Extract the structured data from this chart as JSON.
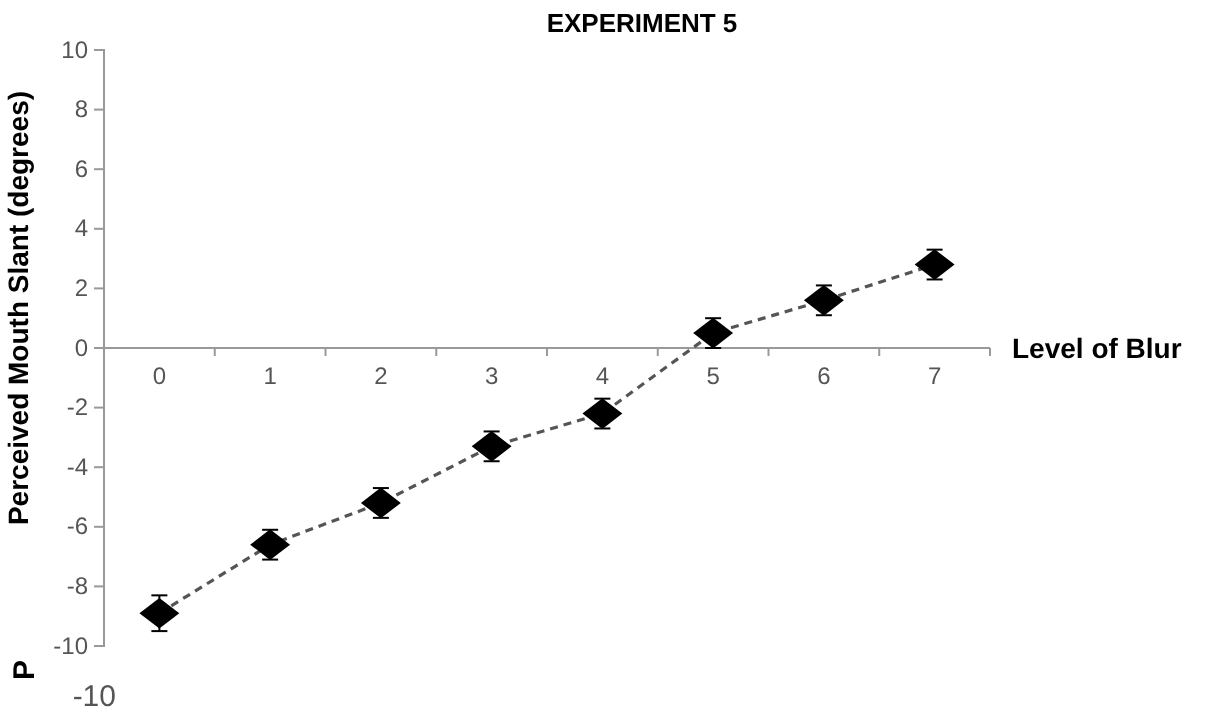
{
  "chart_data": {
    "type": "line",
    "title": "EXPERIMENT 5",
    "xlabel": "Level of Blur",
    "ylabel": "Perceived Mouth Slant (degrees)",
    "categories": [
      "0",
      "1",
      "2",
      "3",
      "4",
      "5",
      "6",
      "7"
    ],
    "series": [
      {
        "color": "#000000",
        "values": [
          -8.9,
          -6.6,
          -5.2,
          -3.3,
          -2.2,
          0.5,
          1.6,
          2.8
        ],
        "errors": [
          0.6,
          0.5,
          0.5,
          0.5,
          0.5,
          0.5,
          0.5,
          0.5
        ]
      }
    ],
    "ylim": [
      -10,
      10
    ],
    "yticks": [
      -10,
      -8,
      -6,
      -4,
      -2,
      0,
      2,
      4,
      6,
      8,
      10
    ],
    "marker": "diamond",
    "line_style": "dashed",
    "grid": false,
    "annotations": [
      "P",
      "-10"
    ]
  }
}
